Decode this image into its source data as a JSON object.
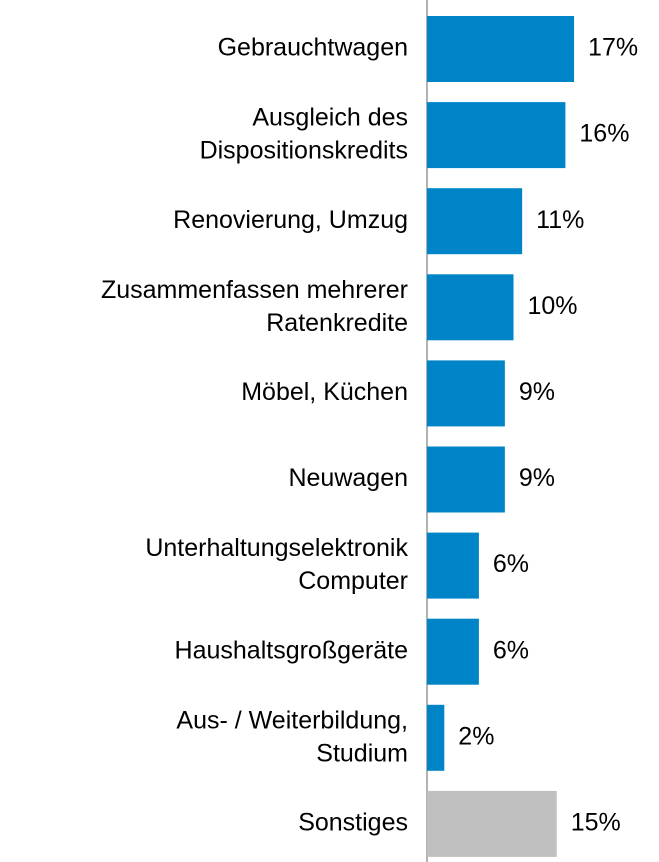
{
  "chart_data": {
    "type": "barh",
    "categories": [
      "Gebrauchtwagen",
      "Ausgleich des\nDispositionskredits",
      "Renovierung, Umzug",
      "Zusammenfassen mehrerer\nRatenkredite",
      "Möbel, Küchen",
      "Neuwagen",
      "Unterhaltungselektronik\nComputer",
      "Haushaltsgroßgeräte",
      "Aus- / Weiterbildung,\nStudium",
      "Sonstiges"
    ],
    "values": [
      17,
      16,
      11,
      10,
      9,
      9,
      6,
      6,
      2,
      15
    ],
    "value_labels": [
      "17%",
      "16%",
      "11%",
      "10%",
      "9%",
      "9%",
      "6%",
      "6%",
      "2%",
      "15%"
    ],
    "colors": [
      "#0084c8",
      "#0084c8",
      "#0084c8",
      "#0084c8",
      "#0084c8",
      "#0084c8",
      "#0084c8",
      "#0084c8",
      "#0084c8",
      "#c0c0c0"
    ]
  }
}
